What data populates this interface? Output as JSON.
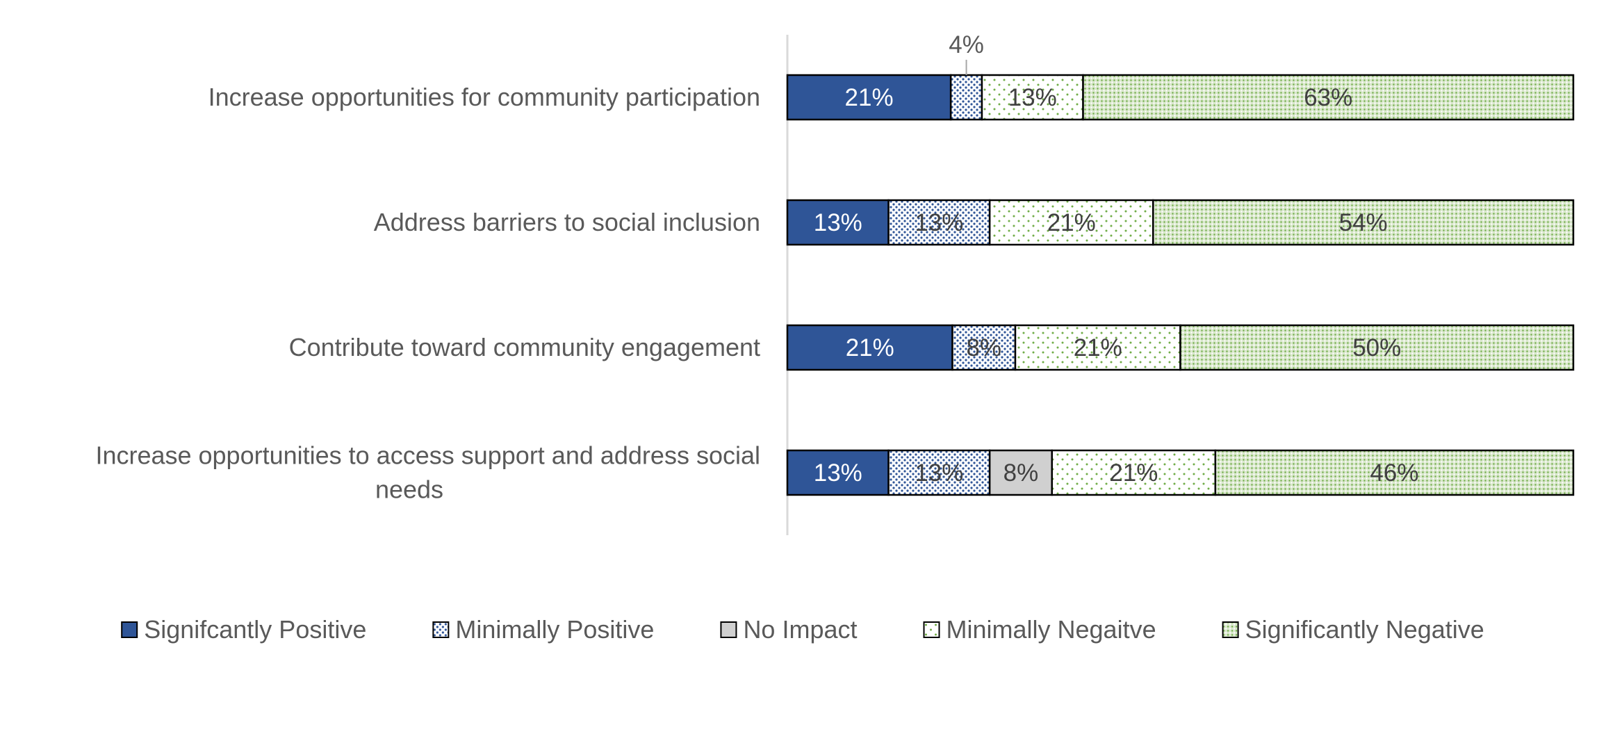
{
  "chart_data": {
    "type": "bar",
    "orientation": "horizontal",
    "stacked": true,
    "normalized": true,
    "title": "",
    "xlabel": "",
    "ylabel": "",
    "xlim": [
      0,
      100
    ],
    "legend_position": "bottom",
    "grid": false,
    "categories": [
      "Increase opportunities for community participation",
      "Address barriers to social inclusion",
      "Contribute toward community engagement",
      "Increase opportunities to access support and address social needs"
    ],
    "series": [
      {
        "name": "Signifcantly Positive",
        "values": [
          21,
          13,
          21,
          13
        ],
        "labels": [
          "21%",
          "13%",
          "21%",
          "13%"
        ],
        "color": "#2f5597",
        "pattern": "solid"
      },
      {
        "name": "Minimally Positive",
        "values": [
          4,
          13,
          8,
          13
        ],
        "labels": [
          "4%",
          "13%",
          "8%",
          "13%"
        ],
        "color": "#2f5597",
        "pattern": "blue-dots"
      },
      {
        "name": "No Impact",
        "values": [
          0,
          0,
          0,
          8
        ],
        "labels": [
          "",
          "",
          "",
          "8%"
        ],
        "color": "#d0d0d0",
        "pattern": "solid"
      },
      {
        "name": "Minimally Negaitve",
        "values": [
          13,
          21,
          21,
          21
        ],
        "labels": [
          "13%",
          "21%",
          "21%",
          "21%"
        ],
        "color": "#70ad47",
        "pattern": "sparse-green-dots"
      },
      {
        "name": "Significantly Negative",
        "values": [
          63,
          54,
          50,
          46
        ],
        "labels": [
          "63%",
          "54%",
          "50%",
          "46%"
        ],
        "color": "#70ad47",
        "pattern": "dense-green-dots"
      }
    ]
  }
}
